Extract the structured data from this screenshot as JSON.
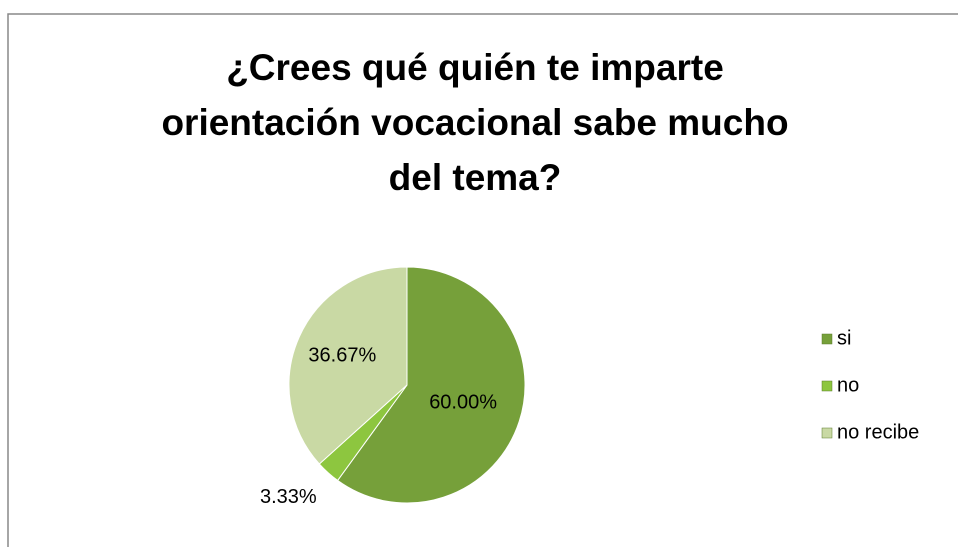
{
  "chart_data": {
    "type": "pie",
    "title": "¿Crees qué quién te imparte orientación vocacional sabe mucho del tema?",
    "categories": [
      "si",
      "no",
      "no recibe"
    ],
    "values": [
      60,
      3.33,
      36.67
    ],
    "value_labels": [
      "60.00%",
      "3.33%",
      "36.67%"
    ],
    "colors": [
      "#76a03a",
      "#8dc63f",
      "#c9d9a4"
    ],
    "legend": "right"
  }
}
